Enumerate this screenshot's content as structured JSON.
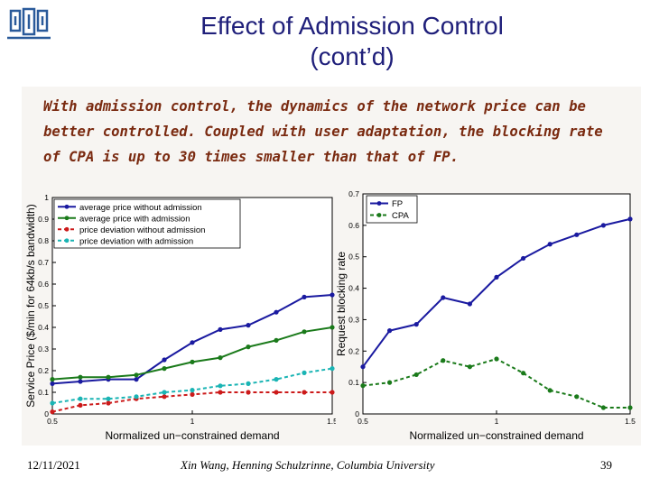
{
  "slide": {
    "title_line1": "Effect of Admission Control",
    "title_line2": "(cont’d)",
    "text_lines": [
      "With admission control, the dynamics of the network price can be",
      "better controlled. Coupled with user adaptation, the blocking rate",
      "of CPA is up to 30 times smaller than that of FP."
    ]
  },
  "footer": {
    "date": "12/11/2021",
    "author": "Xin Wang, Henning Schulzrinne, Columbia University",
    "page": "39"
  },
  "colors": {
    "title": "#1f1f7a",
    "text": "#7a2a10",
    "blue": "#1a1aa0",
    "green": "#1a7a1a",
    "red": "#cc1a1a",
    "cyan": "#1ab4b4"
  },
  "chart_data": [
    {
      "type": "line",
      "xlabel": "Normalized un−constrained demand",
      "ylabel": "Service Price ($/min for 64kb/s bandwidth)",
      "xlim": [
        0.5,
        1.5
      ],
      "ylim": [
        0,
        1
      ],
      "x_ticks": [
        "0.5",
        "1",
        "1.5"
      ],
      "y_ticks": [
        "0",
        "0.1",
        "0.2",
        "0.3",
        "0.4",
        "0.5",
        "0.6",
        "0.7",
        "0.8",
        "0.9",
        "1"
      ],
      "x": [
        0.5,
        0.6,
        0.7,
        0.8,
        0.9,
        1.0,
        1.1,
        1.2,
        1.3,
        1.4,
        1.5
      ],
      "legend_position": "top",
      "series": [
        {
          "name": "average price without admission",
          "color": "#1a1aa0",
          "dash": "",
          "values": [
            0.14,
            0.15,
            0.16,
            0.16,
            0.25,
            0.33,
            0.39,
            0.41,
            0.47,
            0.54,
            0.55
          ]
        },
        {
          "name": "average price with admission",
          "color": "#1a7a1a",
          "dash": "",
          "values": [
            0.16,
            0.17,
            0.17,
            0.18,
            0.21,
            0.24,
            0.26,
            0.31,
            0.34,
            0.38,
            0.4
          ]
        },
        {
          "name": "price deviation  without admission",
          "color": "#cc1a1a",
          "dash": "4,3",
          "values": [
            0.01,
            0.04,
            0.05,
            0.07,
            0.08,
            0.09,
            0.1,
            0.1,
            0.1,
            0.1,
            0.1
          ]
        },
        {
          "name": "price deviation  with admission",
          "color": "#1ab4b4",
          "dash": "4,3",
          "values": [
            0.05,
            0.07,
            0.07,
            0.08,
            0.1,
            0.11,
            0.13,
            0.14,
            0.16,
            0.19,
            0.21
          ]
        }
      ]
    },
    {
      "type": "line",
      "xlabel": "Normalized un−constrained demand",
      "ylabel": "Request blocking rate",
      "xlim": [
        0.5,
        1.5
      ],
      "ylim": [
        0,
        0.7
      ],
      "x_ticks": [
        "0.5",
        "1",
        "1.5"
      ],
      "y_ticks": [
        "0",
        "0.1",
        "0.2",
        "0.3",
        "0.4",
        "0.5",
        "0.6",
        "0.7"
      ],
      "x": [
        0.5,
        0.6,
        0.7,
        0.8,
        0.9,
        1.0,
        1.1,
        1.2,
        1.3,
        1.4,
        1.5
      ],
      "legend_position": "top-left",
      "series": [
        {
          "name": "FP",
          "color": "#1a1aa0",
          "dash": "",
          "values": [
            0.15,
            0.265,
            0.285,
            0.37,
            0.35,
            0.435,
            0.495,
            0.54,
            0.57,
            0.6,
            0.62
          ]
        },
        {
          "name": "CPA",
          "color": "#1a7a1a",
          "dash": "4,3",
          "values": [
            0.09,
            0.1,
            0.125,
            0.17,
            0.15,
            0.175,
            0.13,
            0.075,
            0.055,
            0.02,
            0.02
          ]
        }
      ]
    }
  ]
}
